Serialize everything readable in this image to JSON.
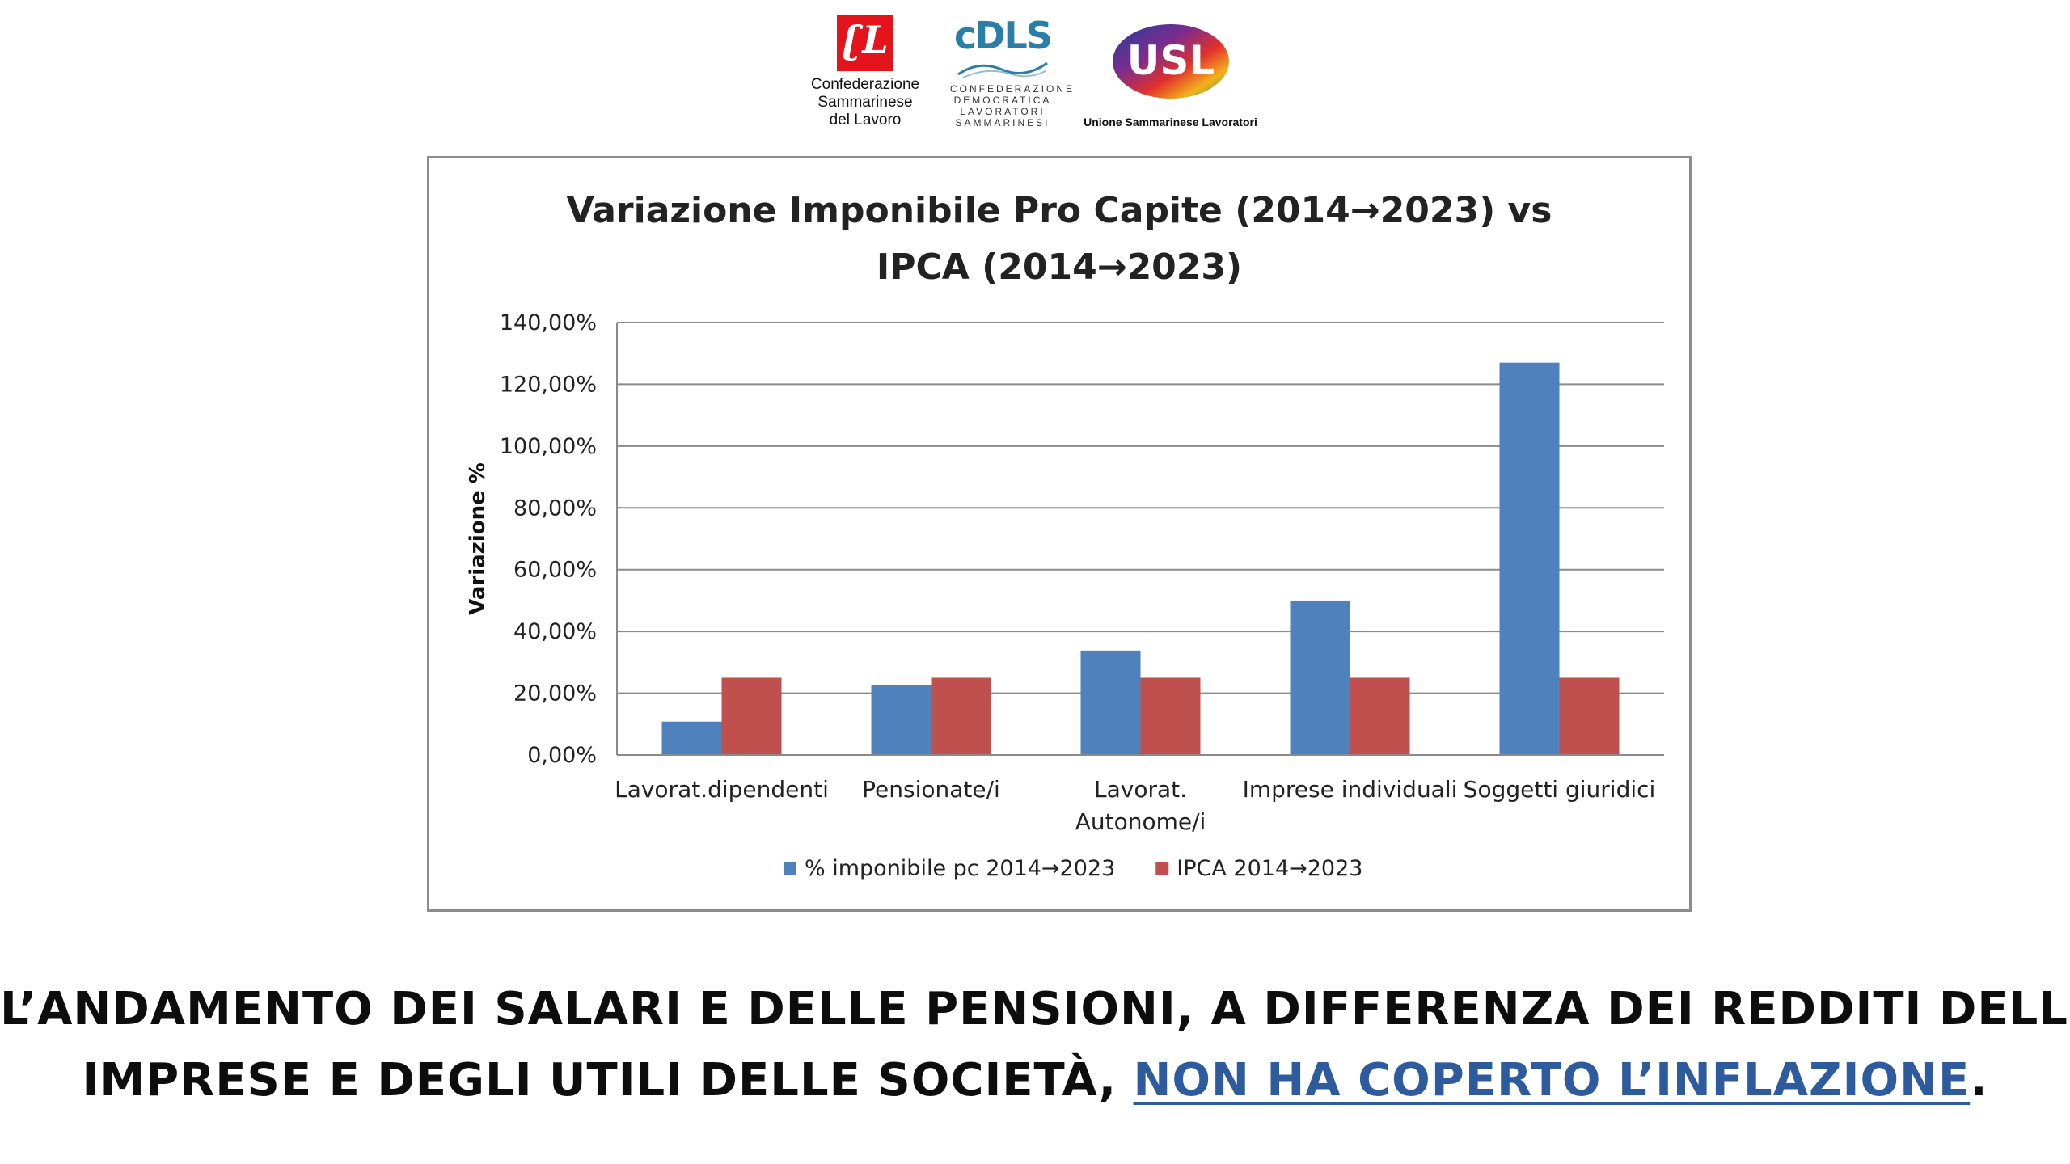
{
  "logos": {
    "csdl": {
      "mark": "ʗL",
      "name_lines": [
        "Confederazione",
        "Sammarinese",
        "del Lavoro"
      ]
    },
    "cdls": {
      "mark": "cDLS",
      "name_lines": [
        "CONFEDERAZIONE",
        "DEMOCRATICA",
        "LAVORATORI",
        "SAMMARINESI"
      ]
    },
    "usl": {
      "mark": "USL",
      "name": "Unione Sammarinese Lavoratori"
    }
  },
  "chart_data": {
    "type": "bar",
    "title_lines": [
      "Variazione Imponibile Pro Capite (2014→2023) vs",
      "IPCA (2014→2023)"
    ],
    "xlabel": "",
    "ylabel": "Variazione %",
    "ylim": [
      0,
      140
    ],
    "yticks": [
      0,
      20,
      40,
      60,
      80,
      100,
      120,
      140
    ],
    "ytick_labels": [
      "0,00%",
      "20,00%",
      "40,00%",
      "60,00%",
      "80,00%",
      "100,00%",
      "120,00%",
      "140,00%"
    ],
    "grid": true,
    "legend_position": "bottom",
    "categories": [
      [
        "Lavorat.dipendenti"
      ],
      [
        "Pensionate/i"
      ],
      [
        "Lavorat.",
        "Autonome/i"
      ],
      [
        "Imprese individuali"
      ],
      [
        "Soggetti giuridici"
      ]
    ],
    "series": [
      {
        "name": "% imponibile pc 2014→2023",
        "color": "#4f81bd",
        "values": [
          10.8,
          22.5,
          33.8,
          50.0,
          127.0
        ]
      },
      {
        "name": "IPCA 2014→2023",
        "color": "#c0504d",
        "values": [
          25.0,
          25.0,
          25.0,
          25.0,
          25.0
        ]
      }
    ]
  },
  "caption": {
    "line1": "L’ANDAMENTO DEI SALARI E DELLE PENSIONI, A DIFFERENZA DEI REDDITI DELLE",
    "line2_prefix": "IMPRESE E DEGLI UTILI DELLE SOCIETÀ, ",
    "line2_highlight": "NON HA COPERTO L’INFLAZIONE",
    "line2_suffix": ".",
    "highlight_color": "#2e5b9e"
  }
}
